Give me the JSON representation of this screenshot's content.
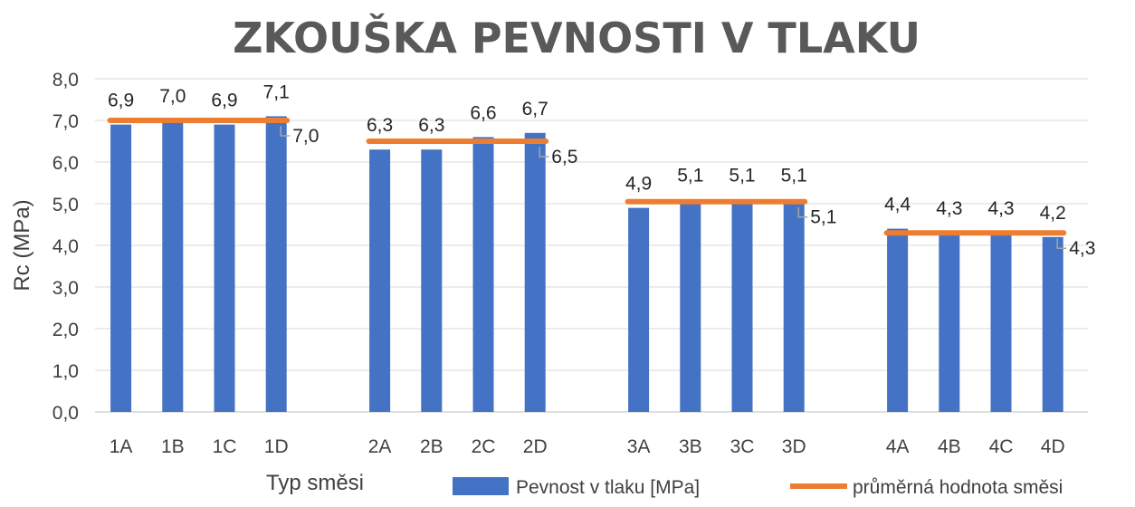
{
  "chart_data": {
    "type": "bar",
    "title": "ZKOUŠKA PEVNOSTI V TLAKU",
    "xlabel": "Typ směsi",
    "ylabel": "Rc (MPa)",
    "ylim": [
      0,
      8
    ],
    "yticks": [
      "0,0",
      "1,0",
      "2,0",
      "3,0",
      "4,0",
      "5,0",
      "6,0",
      "7,0",
      "8,0"
    ],
    "grid": true,
    "legend_position": "bottom-right",
    "groups": [
      {
        "categories": [
          "1A",
          "1B",
          "1C",
          "1D"
        ],
        "values": [
          6.9,
          7.0,
          6.9,
          7.1
        ],
        "labels": [
          "6,9",
          "7,0",
          "6,9",
          "7,1"
        ],
        "average": 7.0,
        "average_label": "7,0"
      },
      {
        "categories": [
          "2A",
          "2B",
          "2C",
          "2D"
        ],
        "values": [
          6.3,
          6.3,
          6.6,
          6.7
        ],
        "labels": [
          "6,3",
          "6,3",
          "6,6",
          "6,7"
        ],
        "average": 6.5,
        "average_label": "6,5"
      },
      {
        "categories": [
          "3A",
          "3B",
          "3C",
          "3D"
        ],
        "values": [
          4.9,
          5.1,
          5.1,
          5.1
        ],
        "labels": [
          "4,9",
          "5,1",
          "5,1",
          "5,1"
        ],
        "average": 5.05,
        "average_label": "5,1"
      },
      {
        "categories": [
          "4A",
          "4B",
          "4C",
          "4D"
        ],
        "values": [
          4.4,
          4.3,
          4.3,
          4.2
        ],
        "labels": [
          "4,4",
          "4,3",
          "4,3",
          "4,2"
        ],
        "average": 4.3,
        "average_label": "4,3"
      }
    ],
    "series": [
      {
        "name": "Pevnost v tlaku [MPa]",
        "kind": "bar",
        "color": "#4472C4"
      },
      {
        "name": "průměrná hodnota směsi",
        "kind": "line",
        "color": "#ED7D31"
      }
    ]
  }
}
